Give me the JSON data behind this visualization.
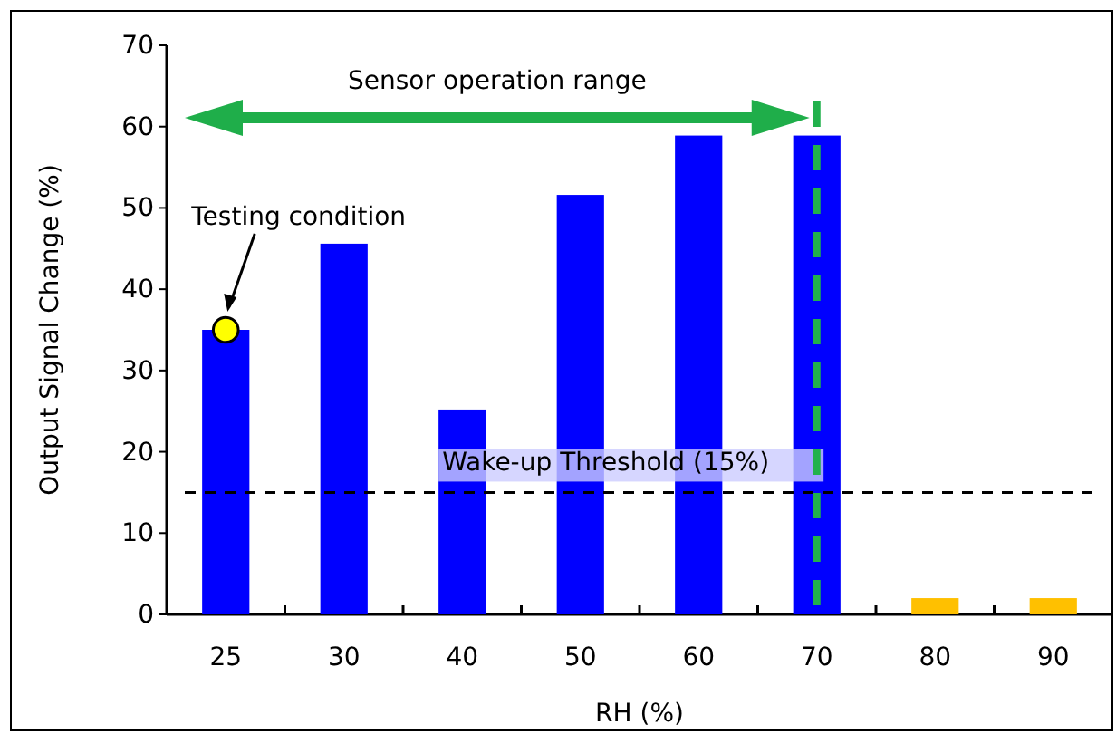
{
  "chart_data": {
    "type": "bar",
    "xlabel": "RH (%)",
    "ylabel": "Output Signal Change (%)",
    "categories": [
      "25",
      "30",
      "40",
      "50",
      "60",
      "70",
      "80",
      "90"
    ],
    "series": [
      {
        "values": [
          35,
          45.6,
          25.2,
          51.6,
          58.9,
          58.9,
          2,
          2
        ],
        "colors": [
          "#0000ff",
          "#0000ff",
          "#0000ff",
          "#0000ff",
          "#0000ff",
          "#0000ff",
          "#ffc000",
          "#ffc000"
        ]
      },
      {
        "type": "scatter",
        "x": [
          "25"
        ],
        "values": [
          35
        ],
        "color": "#ffff00",
        "marker": "circle"
      }
    ],
    "ylim": [
      0,
      70
    ],
    "yticks": [
      0,
      10,
      20,
      30,
      40,
      50,
      60,
      70
    ],
    "grid": false,
    "ref_lines": [
      {
        "axis": "y",
        "value": 15,
        "label": "Wake-up Threshold (15%)",
        "color": "#000000",
        "line_style": "dashed"
      },
      {
        "axis": "x",
        "value": "70",
        "color": "#22b14c",
        "line_style": "dashed"
      }
    ],
    "annotations": [
      "Testing condition",
      "Sensor operation range"
    ]
  }
}
